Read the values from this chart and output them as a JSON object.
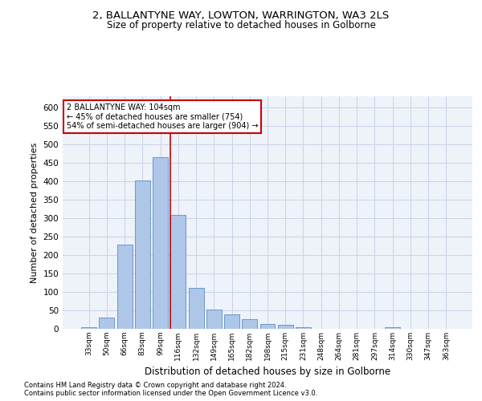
{
  "title": "2, BALLANTYNE WAY, LOWTON, WARRINGTON, WA3 2LS",
  "subtitle": "Size of property relative to detached houses in Golborne",
  "xlabel": "Distribution of detached houses by size in Golborne",
  "ylabel": "Number of detached properties",
  "footnote1": "Contains HM Land Registry data © Crown copyright and database right 2024.",
  "footnote2": "Contains public sector information licensed under the Open Government Licence v3.0.",
  "annotation_line1": "2 BALLANTYNE WAY: 104sqm",
  "annotation_line2": "← 45% of detached houses are smaller (754)",
  "annotation_line3": "54% of semi-detached houses are larger (904) →",
  "bar_labels": [
    "33sqm",
    "50sqm",
    "66sqm",
    "83sqm",
    "99sqm",
    "116sqm",
    "132sqm",
    "149sqm",
    "165sqm",
    "182sqm",
    "198sqm",
    "215sqm",
    "231sqm",
    "248sqm",
    "264sqm",
    "281sqm",
    "297sqm",
    "314sqm",
    "330sqm",
    "347sqm",
    "363sqm"
  ],
  "bar_values": [
    5,
    30,
    228,
    402,
    465,
    308,
    110,
    53,
    40,
    26,
    13,
    11,
    5,
    0,
    0,
    0,
    0,
    5,
    0,
    0,
    0
  ],
  "bar_color": "#aec6e8",
  "bar_edge_color": "#5a8fc2",
  "vline_x": 4.58,
  "vline_color": "#cc0000",
  "annotation_box_color": "#ffffff",
  "annotation_box_edge": "#cc0000",
  "bg_color": "#eef2f9",
  "grid_color": "#c8d4e8",
  "ylim": [
    0,
    630
  ],
  "yticks": [
    0,
    50,
    100,
    150,
    200,
    250,
    300,
    350,
    400,
    450,
    500,
    550,
    600
  ]
}
